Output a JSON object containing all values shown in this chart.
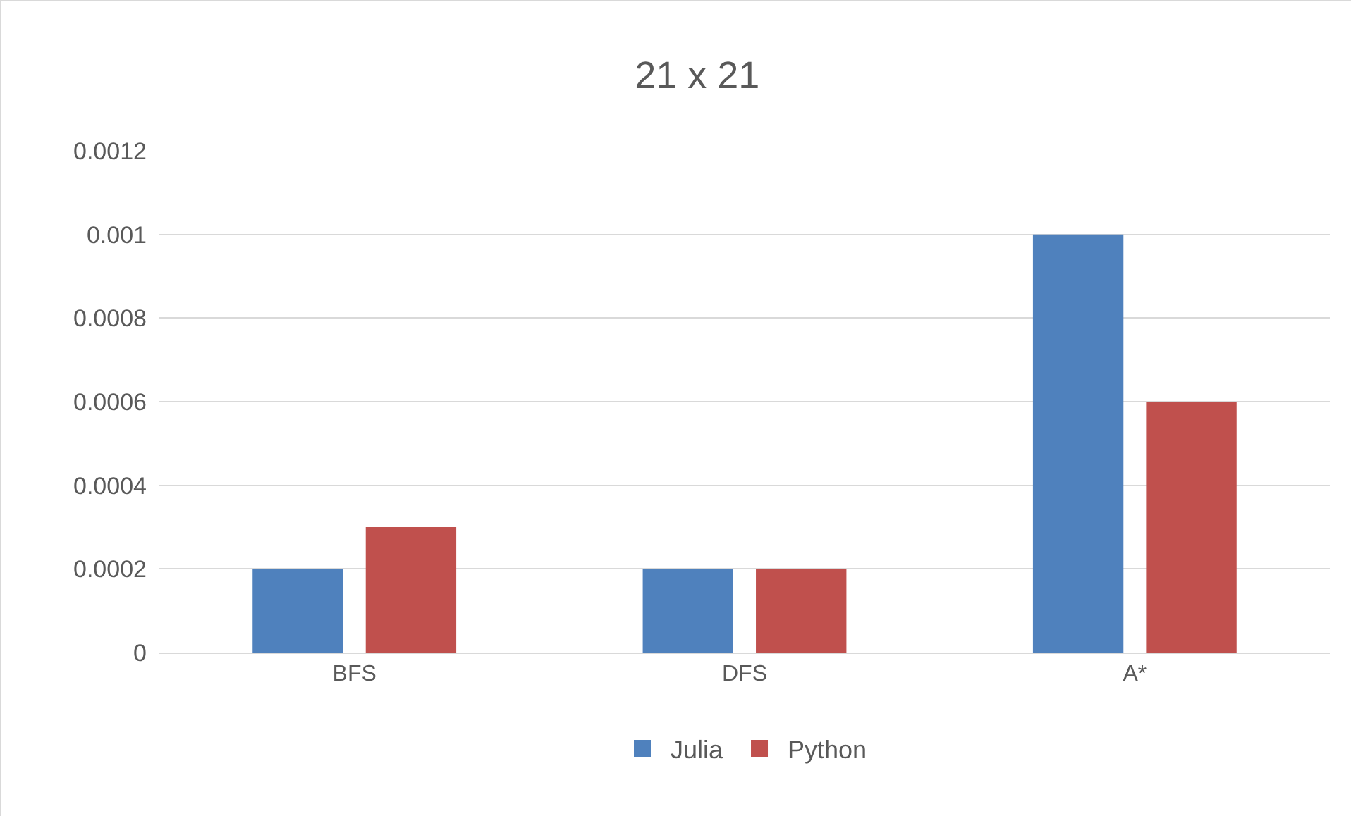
{
  "chart_data": {
    "type": "bar",
    "title": "21 x 21",
    "categories": [
      "BFS",
      "DFS",
      "A*"
    ],
    "series": [
      {
        "name": "Julia",
        "color": "#4f81bd",
        "values": [
          0.0002,
          0.0002,
          0.001
        ]
      },
      {
        "name": "Python",
        "color": "#c0504d",
        "values": [
          0.0003,
          0.0002,
          0.0006
        ]
      }
    ],
    "ylim": [
      0,
      0.0012
    ],
    "yticks": [
      0,
      0.0002,
      0.0004,
      0.0006,
      0.0008,
      0.001,
      0.0012
    ],
    "grid": "y",
    "legend": "bottom"
  }
}
